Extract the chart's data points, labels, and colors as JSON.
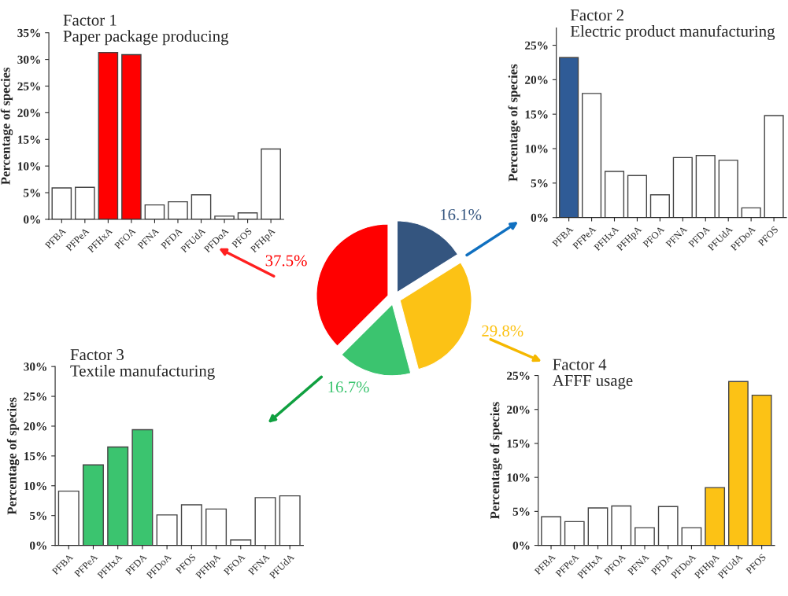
{
  "chart_data": [
    {
      "type": "bar",
      "title": "Factor 1",
      "subtitle": "Paper package producing",
      "ylabel": "Percentage of species",
      "categories": [
        "PFBA",
        "PFPeA",
        "PFHxA",
        "PFOA",
        "PFNA",
        "PFDA",
        "PFUdA",
        "PFDoA",
        "PFOS",
        "PFHpA"
      ],
      "values": [
        5.9,
        6.0,
        31.3,
        30.9,
        2.7,
        3.3,
        4.6,
        0.6,
        1.2,
        13.2
      ],
      "colors": [
        "#ffffff",
        "#ffffff",
        "#ff0000",
        "#ff0000",
        "#ffffff",
        "#ffffff",
        "#ffffff",
        "#ffffff",
        "#ffffff",
        "#ffffff"
      ],
      "ylim": [
        0,
        35
      ],
      "yticks": [
        {
          "value": 0,
          "label": "0%"
        },
        {
          "value": 5,
          "label": "5%"
        },
        {
          "value": 10,
          "label": "10%"
        },
        {
          "value": 15,
          "label": "15%"
        },
        {
          "value": 20,
          "label": "20%"
        },
        {
          "value": 25,
          "label": "25%"
        },
        {
          "value": 30,
          "label": "30%"
        },
        {
          "value": 35,
          "label": "35%"
        }
      ],
      "grid": false
    },
    {
      "type": "bar",
      "title": "Factor 2",
      "subtitle": "Electric product manufacturing",
      "ylabel": "Percentage of species",
      "categories": [
        "PFBA",
        "PFPeA",
        "PFHxA",
        "PFHpA",
        "PFOA",
        "PFNA",
        "PFDA",
        "PFUdA",
        "PFDoA",
        "PFOS"
      ],
      "values": [
        23.2,
        18.0,
        6.7,
        6.1,
        3.3,
        8.7,
        9.0,
        8.3,
        1.4,
        14.8
      ],
      "colors": [
        "#2f5b96",
        "#ffffff",
        "#ffffff",
        "#ffffff",
        "#ffffff",
        "#ffffff",
        "#ffffff",
        "#ffffff",
        "#ffffff",
        "#ffffff"
      ],
      "ylim": [
        0,
        27.5
      ],
      "yticks": [
        {
          "value": 0,
          "label": "0%"
        },
        {
          "value": 5,
          "label": "5%"
        },
        {
          "value": 10,
          "label": "10%"
        },
        {
          "value": 15,
          "label": "15%"
        },
        {
          "value": 20,
          "label": "20%"
        },
        {
          "value": 25,
          "label": "25%"
        }
      ],
      "grid": false
    },
    {
      "type": "bar",
      "title": "Factor 3",
      "subtitle": "Textile manufacturing",
      "ylabel": "Percentage of species",
      "categories": [
        "PFBA",
        "PFPeA",
        "PFHxA",
        "PFDA",
        "PFDoA",
        "PFOS",
        "PFHpA",
        "PFOA",
        "PFNA",
        "PFUdA"
      ],
      "values": [
        9.1,
        13.5,
        16.5,
        19.4,
        5.1,
        6.8,
        6.1,
        0.9,
        8.0,
        8.3
      ],
      "colors": [
        "#ffffff",
        "#3bc46f",
        "#3bc46f",
        "#3bc46f",
        "#ffffff",
        "#ffffff",
        "#ffffff",
        "#ffffff",
        "#ffffff",
        "#ffffff"
      ],
      "ylim": [
        0,
        30
      ],
      "yticks": [
        {
          "value": 0,
          "label": "0%"
        },
        {
          "value": 5,
          "label": "5%"
        },
        {
          "value": 10,
          "label": "10%"
        },
        {
          "value": 15,
          "label": "15%"
        },
        {
          "value": 20,
          "label": "20%"
        },
        {
          "value": 25,
          "label": "25%"
        },
        {
          "value": 30,
          "label": "30%"
        }
      ],
      "grid": false
    },
    {
      "type": "bar",
      "title": "Factor 4",
      "subtitle": "AFFF usage",
      "ylabel": "Percentage of species",
      "categories": [
        "PFBA",
        "PFPeA",
        "PFHxA",
        "PFOA",
        "PFNA",
        "PFDA",
        "PFDoA",
        "PFHpA",
        "PFUdA",
        "PFOS"
      ],
      "values": [
        4.2,
        3.5,
        5.5,
        5.8,
        2.6,
        5.7,
        2.6,
        8.5,
        24.1,
        22.1
      ],
      "colors": [
        "#ffffff",
        "#ffffff",
        "#ffffff",
        "#ffffff",
        "#ffffff",
        "#ffffff",
        "#ffffff",
        "#fcc215",
        "#fcc215",
        "#fcc215"
      ],
      "ylim": [
        0,
        25
      ],
      "yticks": [
        {
          "value": 0,
          "label": "0%"
        },
        {
          "value": 5,
          "label": "5%"
        },
        {
          "value": 10,
          "label": "10%"
        },
        {
          "value": 15,
          "label": "15%"
        },
        {
          "value": 20,
          "label": "20%"
        },
        {
          "value": 25,
          "label": "25%"
        }
      ],
      "grid": false
    },
    {
      "type": "pie",
      "categories": [
        null,
        null,
        null,
        null
      ],
      "values": [
        16.1,
        29.8,
        16.7,
        37.5
      ],
      "value_labels": [
        "16.1%",
        "29.8%",
        "16.7%",
        "37.5%"
      ],
      "colors": [
        "#34557f",
        "#fcc215",
        "#3bc46f",
        "#ff0000"
      ]
    }
  ]
}
